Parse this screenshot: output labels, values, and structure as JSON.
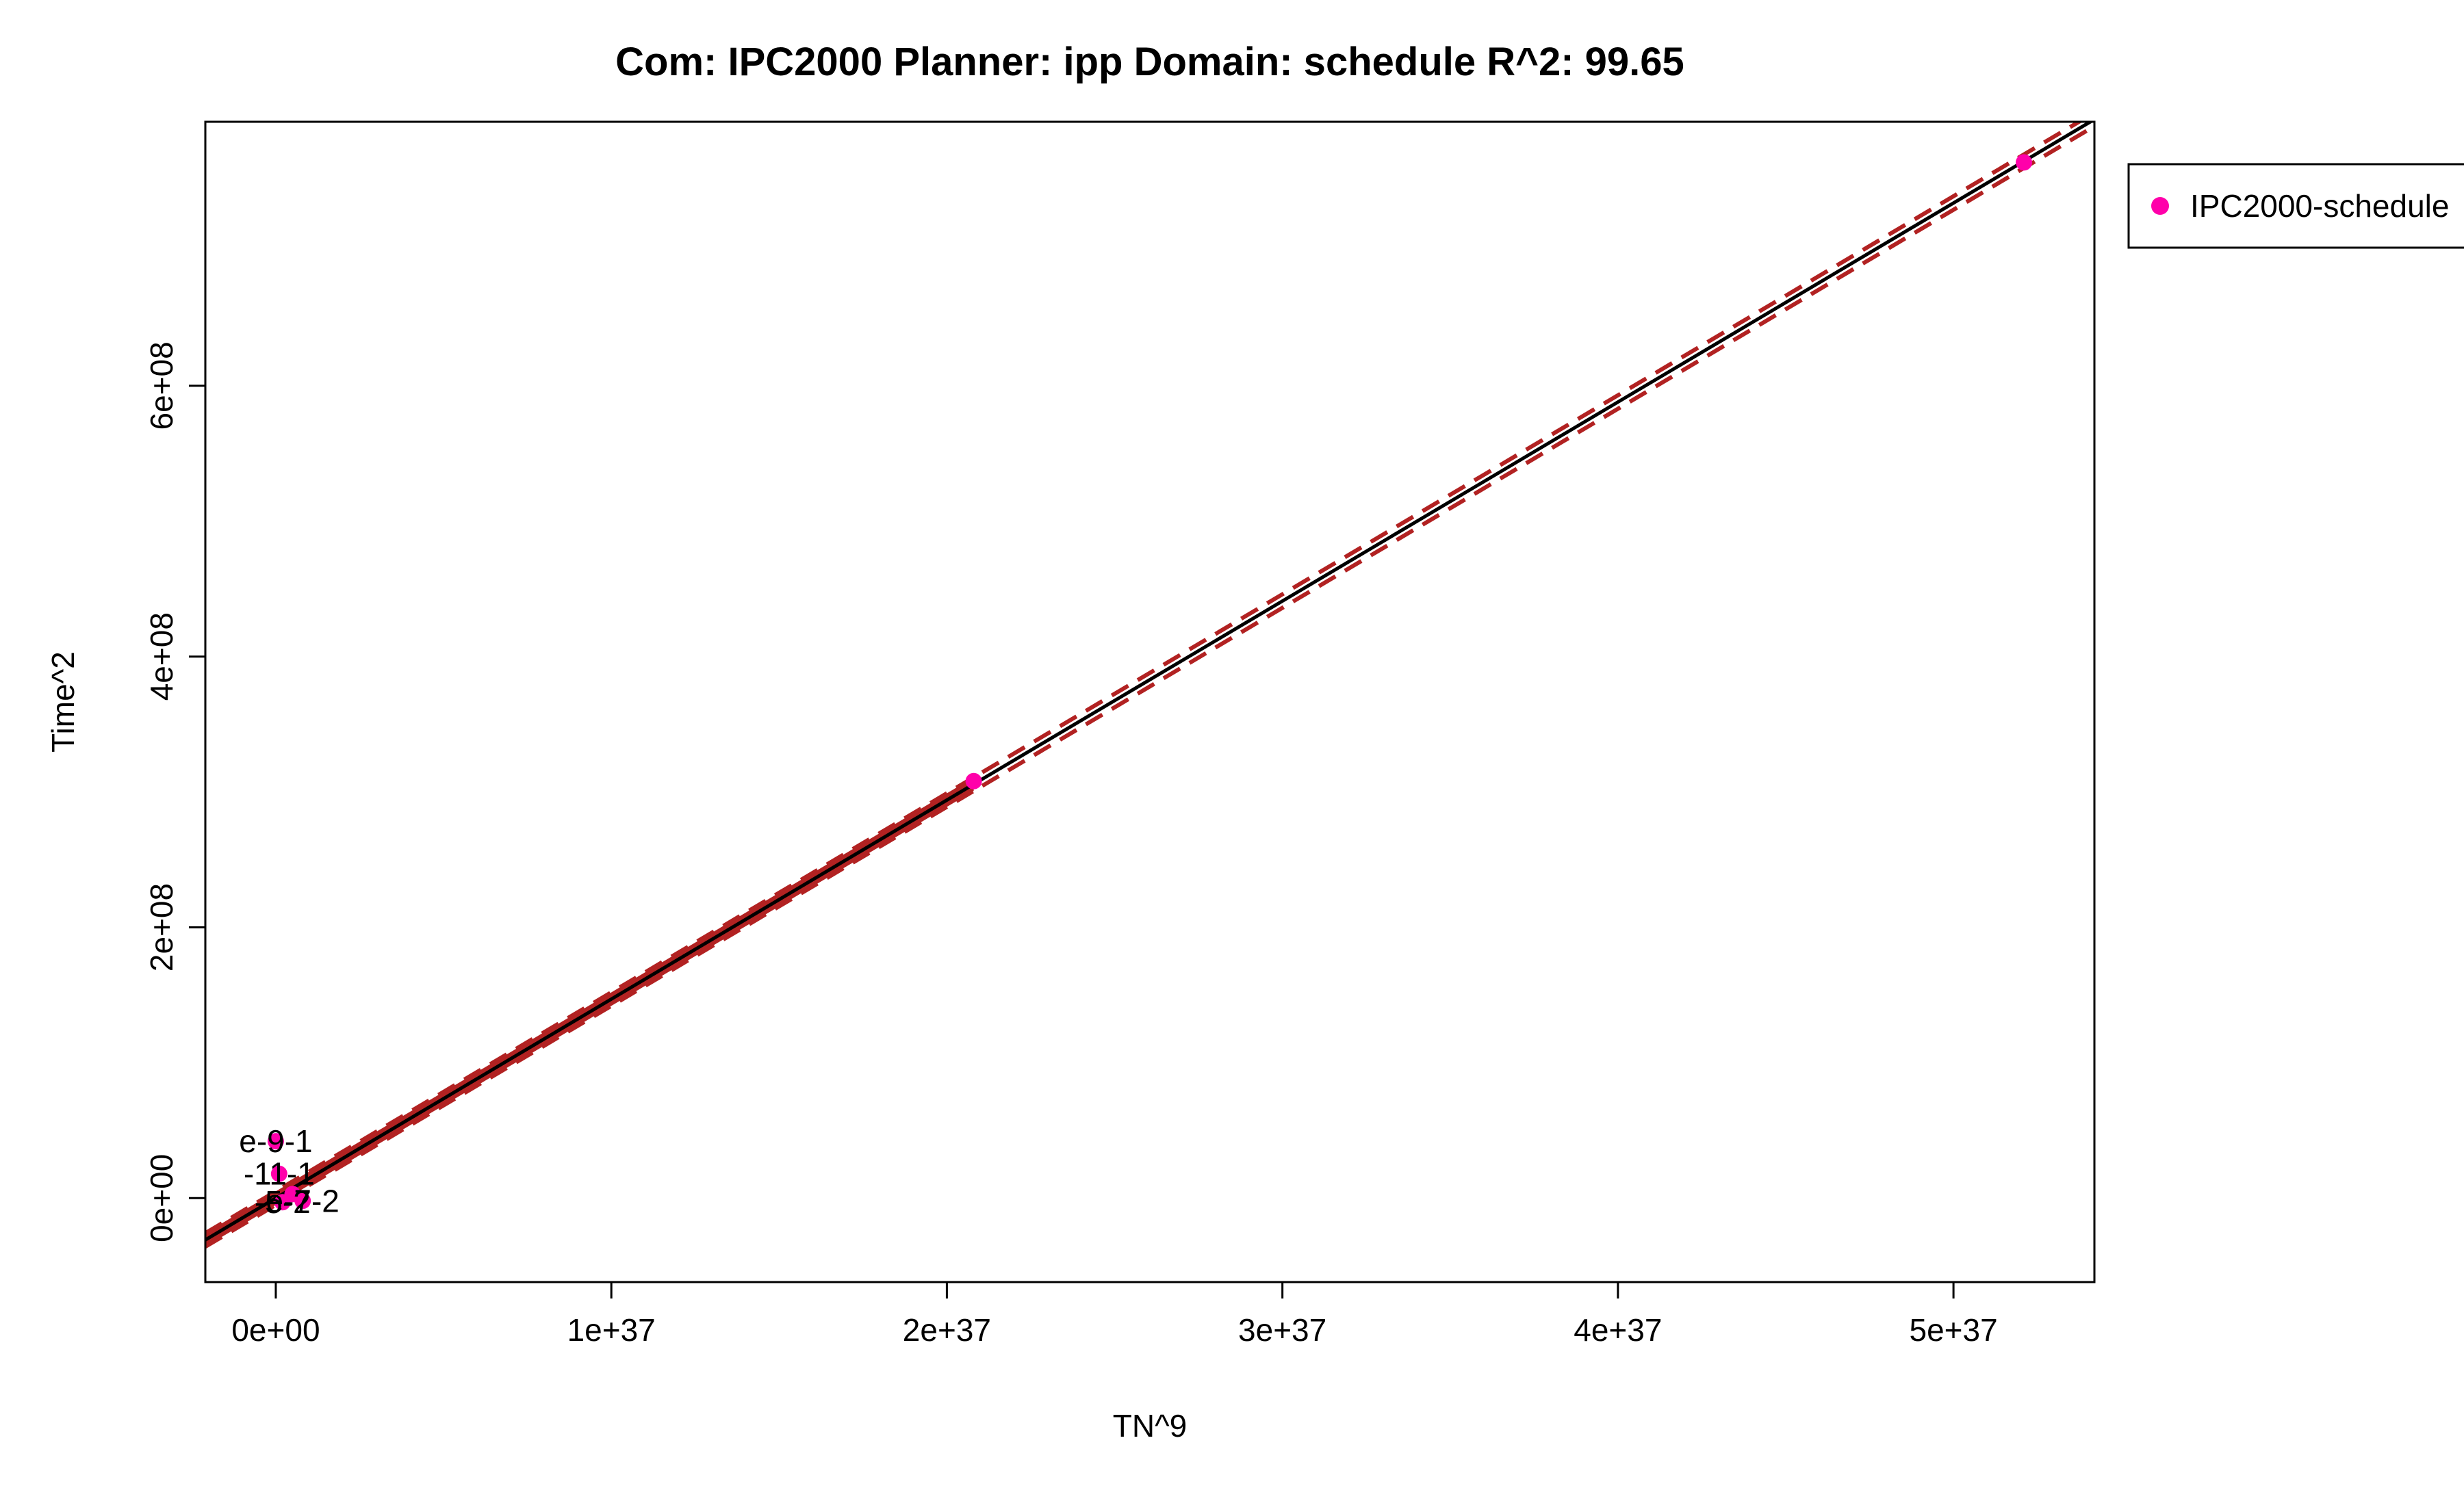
{
  "chart_data": {
    "type": "scatter",
    "title": "Com: IPC2000 Planner: ipp Domain: schedule R^2: 99.65",
    "xlabel": "TN^9",
    "ylabel": "Time^2",
    "xlim": [
      -2.1e+36,
      5.42e+37
    ],
    "ylim": [
      -62000000.0,
      795000000.0
    ],
    "x_ticks": [
      {
        "value": 0,
        "label": "0e+00"
      },
      {
        "value": 1e+37,
        "label": "1e+37"
      },
      {
        "value": 2e+37,
        "label": "2e+37"
      },
      {
        "value": 3e+37,
        "label": "3e+37"
      },
      {
        "value": 4e+37,
        "label": "4e+37"
      },
      {
        "value": 5e+37,
        "label": "5e+37"
      }
    ],
    "y_ticks": [
      {
        "value": 0,
        "label": "0e+00"
      },
      {
        "value": 200000000.0,
        "label": "2e+08"
      },
      {
        "value": 400000000.0,
        "label": "4e+08"
      },
      {
        "value": 600000000.0,
        "label": "6e+08"
      }
    ],
    "grid": false,
    "legend_position": "outside-top-right",
    "series": [
      {
        "name": "IPC2000-schedule",
        "color": "#ff00aa",
        "points": [
          {
            "x": 0,
            "y": 42000000.0,
            "label": "e-9-1"
          },
          {
            "x": 1e+35,
            "y": 18000000.0,
            "label": "-11-1"
          },
          {
            "x": 5e+35,
            "y": 3000000.0,
            "label": ""
          },
          {
            "x": 8e+35,
            "y": -2000000.0,
            "label": "e-7-2"
          },
          {
            "x": 2e+35,
            "y": -3000000.0,
            "label": "-5-2"
          },
          {
            "x": 2.08e+37,
            "y": 308000000.0,
            "label": ""
          },
          {
            "x": 5.21e+37,
            "y": 765000000.0,
            "label": ""
          }
        ]
      }
    ],
    "fit": {
      "slope": 1.47e-29,
      "intercept": 0,
      "line_color": "#000000",
      "band_color": "#b22222",
      "band_half_width": 5000000.0,
      "solid_band_until_x": 2.08e+37
    }
  }
}
